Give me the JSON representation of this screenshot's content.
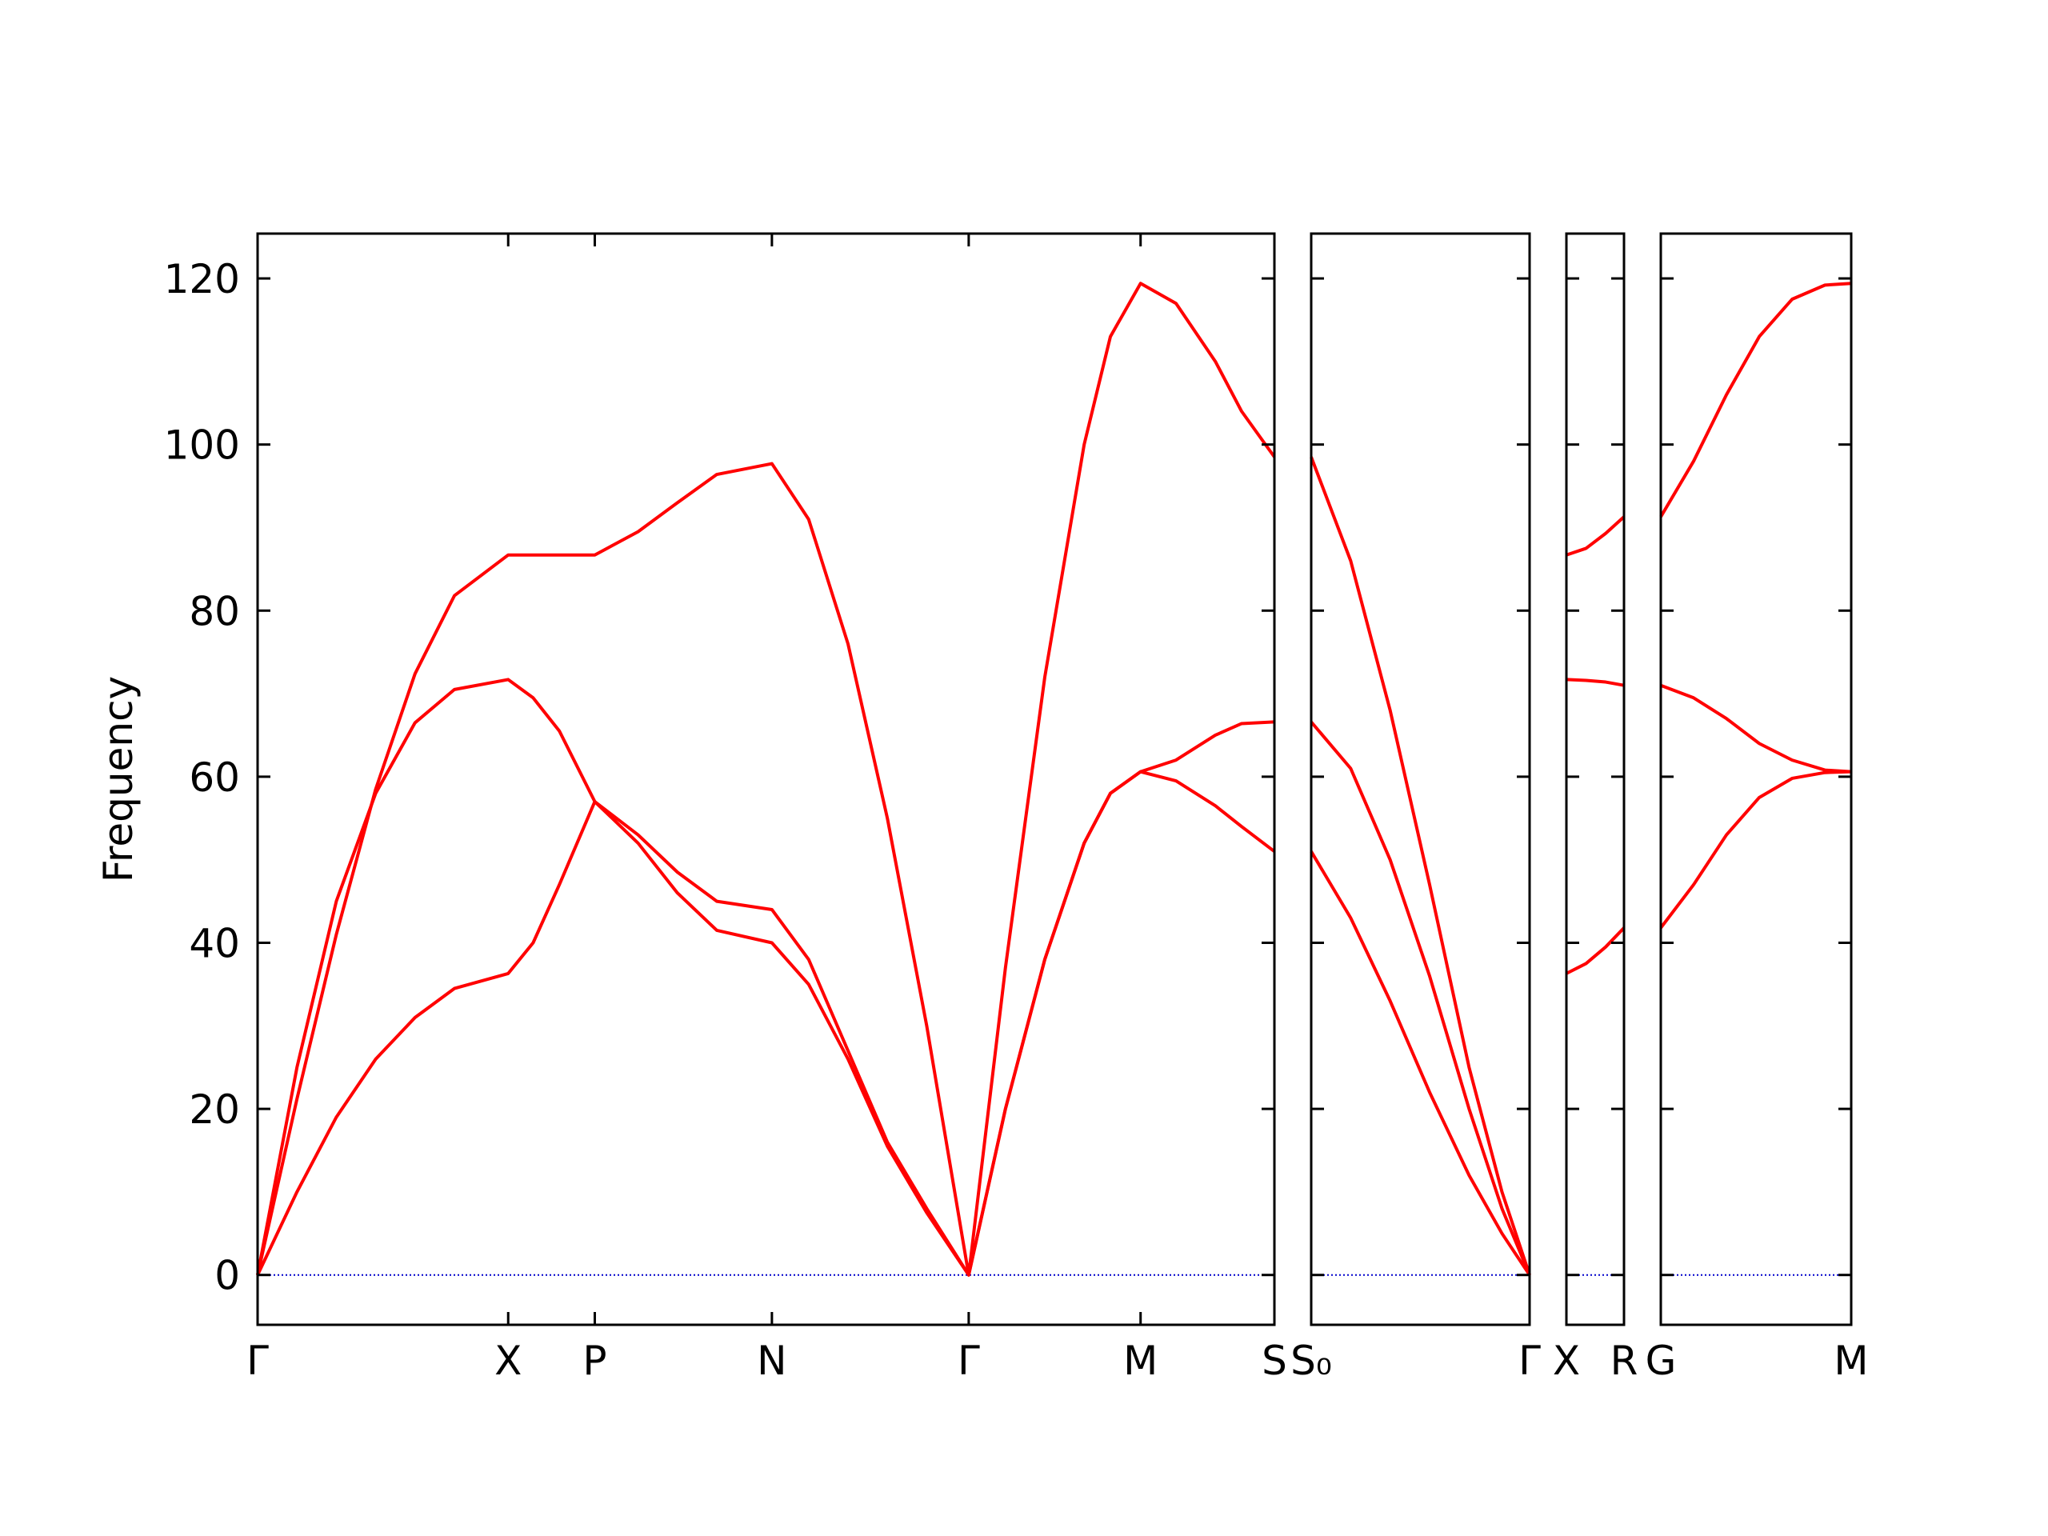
{
  "chart_data": [
    {
      "type": "line",
      "ylabel": "Frequency",
      "ylim": [
        -6,
        125.4
      ],
      "yticks": [
        0,
        20,
        40,
        60,
        80,
        100,
        120
      ],
      "xlim": [
        0,
        7.75
      ],
      "xticks": [
        {
          "value": 0,
          "label": "Γ"
        },
        {
          "value": 1.91,
          "label": "X"
        },
        {
          "value": 2.57,
          "label": "P"
        },
        {
          "value": 3.92,
          "label": "N"
        },
        {
          "value": 5.42,
          "label": "Γ"
        },
        {
          "value": 6.73,
          "label": "M"
        },
        {
          "value": 7.75,
          "label": "S"
        }
      ],
      "hline": 0,
      "hline_color": "#0000cc",
      "x": [
        0,
        0.3,
        0.6,
        0.9,
        1.2,
        1.5,
        1.91,
        2.1,
        2.3,
        2.57,
        2.9,
        3.2,
        3.5,
        3.92,
        4.2,
        4.5,
        4.8,
        5.1,
        5.42,
        5.7,
        6.0,
        6.3,
        6.5,
        6.73,
        7.0,
        7.3,
        7.5,
        7.75
      ],
      "series": [
        {
          "color": "#ff0000",
          "values": [
            0,
            21.2,
            41,
            58.5,
            72.4,
            81.8,
            86.7,
            86.7,
            86.7,
            86.7,
            89.5,
            93,
            96.4,
            97.7,
            91,
            76,
            55,
            30,
            0,
            37,
            72,
            100,
            113,
            119.4,
            117,
            110,
            104,
            98.5
          ]
        },
        {
          "color": "#ff0000",
          "values": [
            0,
            25,
            45,
            58,
            66.5,
            70.5,
            71.7,
            69.5,
            65.5,
            57,
            53,
            48.5,
            45,
            44,
            38,
            27,
            16,
            8,
            0,
            20,
            38,
            52,
            58,
            60.6,
            62,
            65,
            66.4,
            66.6
          ]
        },
        {
          "color": "#ff0000",
          "values": [
            0,
            10,
            19,
            26,
            31,
            34.5,
            36.3,
            40,
            47,
            57,
            52,
            46,
            41.5,
            40,
            35,
            26,
            15.5,
            7.5,
            0,
            20,
            38,
            52,
            58,
            60.6,
            59.5,
            56.5,
            54,
            51
          ]
        }
      ]
    },
    {
      "type": "line",
      "ylim": [
        -6,
        125.4
      ],
      "yticks": [
        0,
        20,
        40,
        60,
        80,
        100,
        120
      ],
      "xlim": [
        0,
        1.66
      ],
      "xticks": [
        {
          "value": 0,
          "label": "S₀"
        },
        {
          "value": 1.66,
          "label": "Γ"
        }
      ],
      "hline": 0,
      "hline_color": "#0000cc",
      "x": [
        0,
        0.3,
        0.6,
        0.9,
        1.2,
        1.45,
        1.66
      ],
      "series": [
        {
          "color": "#ff0000",
          "values": [
            98.5,
            86,
            68,
            47,
            25,
            10,
            0
          ]
        },
        {
          "color": "#ff0000",
          "values": [
            66.6,
            61,
            50,
            36,
            20,
            8,
            0
          ]
        },
        {
          "color": "#ff0000",
          "values": [
            51,
            43,
            33,
            22,
            12,
            5,
            0
          ]
        }
      ]
    },
    {
      "type": "line",
      "ylim": [
        -6,
        125.4
      ],
      "yticks": [
        0,
        20,
        40,
        60,
        80,
        100,
        120
      ],
      "xlim": [
        0,
        0.44
      ],
      "xticks": [
        {
          "value": 0,
          "label": "X"
        },
        {
          "value": 0.44,
          "label": "R"
        }
      ],
      "hline": 0,
      "hline_color": "#0000cc",
      "x": [
        0,
        0.15,
        0.3,
        0.44
      ],
      "series": [
        {
          "color": "#ff0000",
          "values": [
            86.7,
            87.5,
            89.3,
            91.3
          ]
        },
        {
          "color": "#ff0000",
          "values": [
            71.7,
            71.6,
            71.4,
            71.0
          ]
        },
        {
          "color": "#ff0000",
          "values": [
            36.3,
            37.5,
            39.5,
            41.8
          ]
        }
      ]
    },
    {
      "type": "line",
      "ylim": [
        -6,
        125.4
      ],
      "yticks": [
        0,
        20,
        40,
        60,
        80,
        100,
        120
      ],
      "xlim": [
        0,
        1.45
      ],
      "xticks": [
        {
          "value": 0,
          "label": "G"
        },
        {
          "value": 1.45,
          "label": "M"
        }
      ],
      "hline": 0,
      "hline_color": "#0000cc",
      "x": [
        0,
        0.25,
        0.5,
        0.75,
        1.0,
        1.25,
        1.45
      ],
      "series": [
        {
          "color": "#ff0000",
          "values": [
            91.3,
            98,
            106,
            113,
            117.5,
            119.2,
            119.4
          ]
        },
        {
          "color": "#ff0000",
          "values": [
            71,
            69.5,
            67,
            64,
            62,
            60.8,
            60.6
          ]
        },
        {
          "color": "#ff0000",
          "values": [
            41.8,
            47,
            53,
            57.5,
            59.8,
            60.5,
            60.6
          ]
        }
      ]
    }
  ]
}
